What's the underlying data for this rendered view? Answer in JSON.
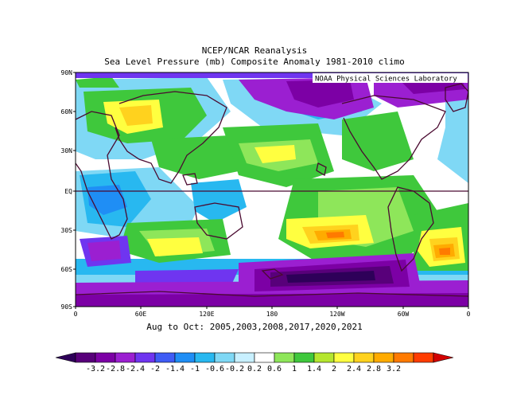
{
  "title_line1": "NCEP/NCAR Reanalysis",
  "title_line2": "Sea Level Pressure (mb) Composite Anomaly 1981-2010 climo",
  "credit": "NOAA Physical Sciences Laboratory",
  "caption": "Aug to Oct: 2005,2003,2008,2017,2020,2021",
  "lat_labels": [
    "90N",
    "60N",
    "30N",
    "EQ",
    "30S",
    "60S",
    "90S"
  ],
  "lon_labels": [
    "0",
    "60E",
    "120E",
    "180",
    "120W",
    "60W",
    "0"
  ],
  "colorbar": {
    "labels": [
      "-3.2",
      "-2.8",
      "-2.4",
      "-2",
      "-1.4",
      "-1",
      "-0.6",
      "-0.2",
      "0.2",
      "0.6",
      "1",
      "1.4",
      "2",
      "2.4",
      "2.8",
      "3.2"
    ],
    "colors": [
      "#2e0059",
      "#58007a",
      "#7c00a5",
      "#9b1fd1",
      "#6f35f0",
      "#3f5cf5",
      "#1f8ef5",
      "#28b8f0",
      "#7fd8f5",
      "#c8f0ff",
      "#ffffff",
      "#8ee65a",
      "#3fc83c",
      "#b5e62e",
      "#ffff40",
      "#ffd21e",
      "#ffab00",
      "#ff7a00",
      "#ff3c00",
      "#d20000"
    ]
  }
}
